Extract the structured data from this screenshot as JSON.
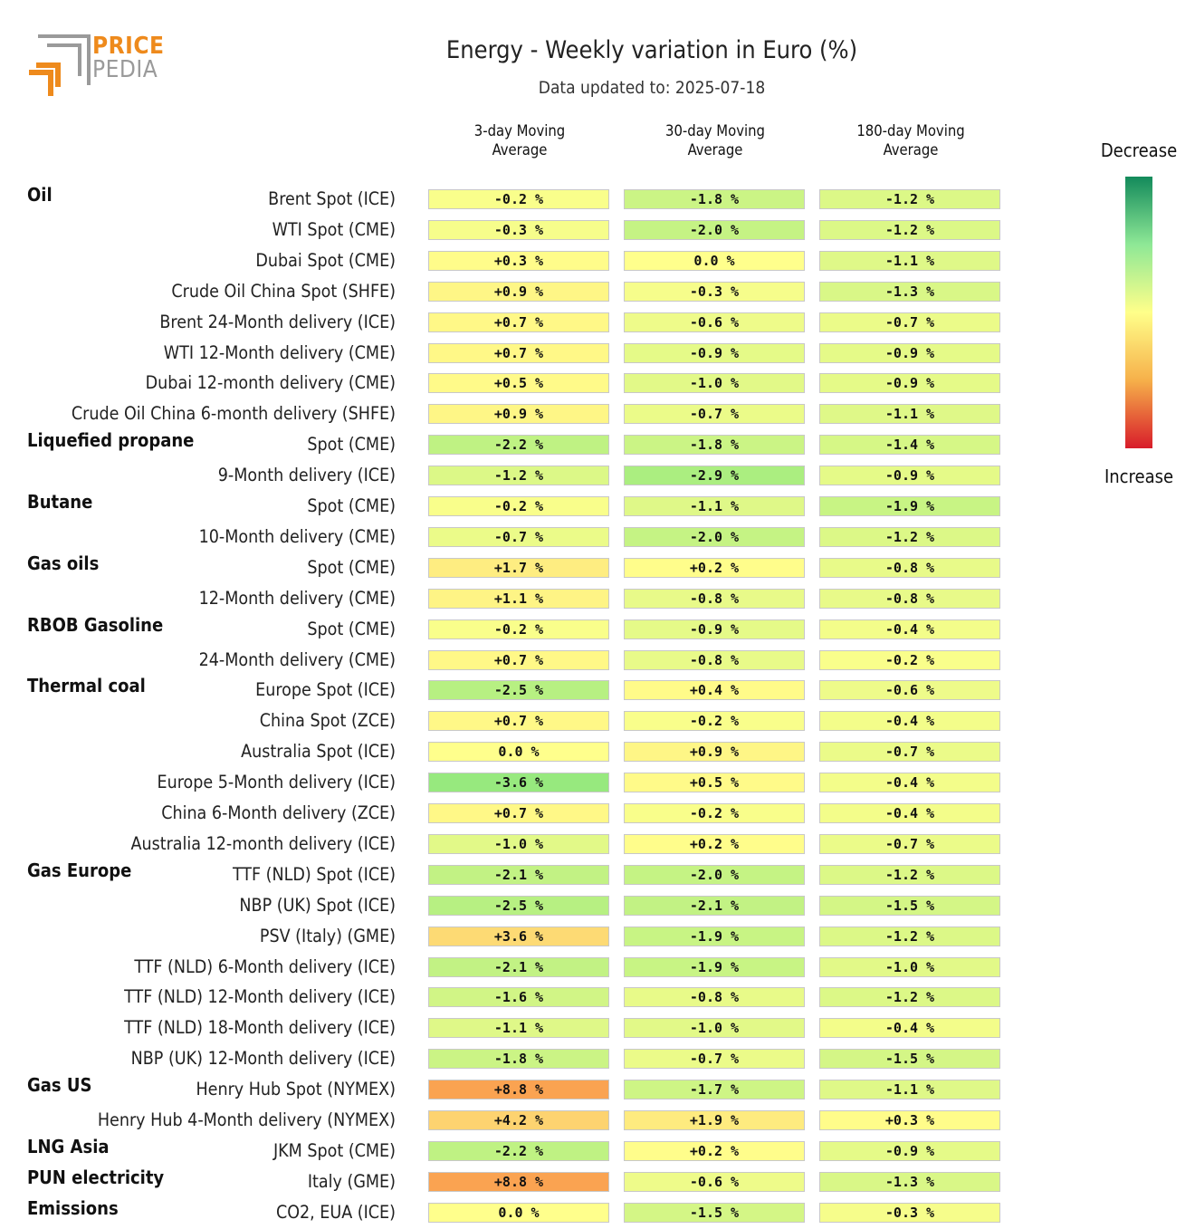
{
  "logo": {
    "line1": "PRICE",
    "line2": "PEDIA"
  },
  "chart_data": {
    "type": "table",
    "title": "Energy - Weekly variation in Euro (%)",
    "subtitle": "Data updated to: 2025-07-18",
    "columns": [
      "3-day Moving Average",
      "30-day Moving Average",
      "180-day Moving Average"
    ],
    "legend": {
      "top": "Decrease",
      "bottom": "Increase"
    },
    "colors": {
      "decrease_strong": "#138a5b",
      "neutral": "#ffff8a",
      "increase_strong": "#d81c2a"
    },
    "rows": [
      {
        "group": "Oil",
        "label": "Brent Spot (ICE)",
        "values": [
          -0.2,
          -1.8,
          -1.2
        ]
      },
      {
        "group": "",
        "label": "WTI Spot (CME)",
        "values": [
          -0.3,
          -2.0,
          -1.2
        ]
      },
      {
        "group": "",
        "label": "Dubai Spot (CME)",
        "values": [
          0.3,
          0.0,
          -1.1
        ]
      },
      {
        "group": "",
        "label": "Crude Oil China Spot (SHFE)",
        "values": [
          0.9,
          -0.3,
          -1.3
        ]
      },
      {
        "group": "",
        "label": "Brent 24-Month delivery (ICE)",
        "values": [
          0.7,
          -0.6,
          -0.7
        ]
      },
      {
        "group": "",
        "label": "WTI 12-Month delivery (CME)",
        "values": [
          0.7,
          -0.9,
          -0.9
        ]
      },
      {
        "group": "",
        "label": "Dubai 12-month delivery (CME)",
        "values": [
          0.5,
          -1.0,
          -0.9
        ]
      },
      {
        "group": "",
        "label": "Crude Oil China 6-month delivery (SHFE)",
        "values": [
          0.9,
          -0.7,
          -1.1
        ]
      },
      {
        "group": "Liquefied propane",
        "label": "Spot (CME)",
        "values": [
          -2.2,
          -1.8,
          -1.4
        ]
      },
      {
        "group": "",
        "label": "9-Month delivery (ICE)",
        "values": [
          -1.2,
          -2.9,
          -0.9
        ]
      },
      {
        "group": "Butane",
        "label": "Spot (CME)",
        "values": [
          -0.2,
          -1.1,
          -1.9
        ]
      },
      {
        "group": "",
        "label": "10-Month delivery (CME)",
        "values": [
          -0.7,
          -2.0,
          -1.2
        ]
      },
      {
        "group": "Gas oils",
        "label": "Spot (CME)",
        "values": [
          1.7,
          0.2,
          -0.8
        ]
      },
      {
        "group": "",
        "label": "12-Month delivery (CME)",
        "values": [
          1.1,
          -0.8,
          -0.8
        ]
      },
      {
        "group": "RBOB Gasoline",
        "label": "Spot (CME)",
        "values": [
          -0.2,
          -0.9,
          -0.4
        ]
      },
      {
        "group": "",
        "label": "24-Month delivery (CME)",
        "values": [
          0.7,
          -0.8,
          -0.2
        ]
      },
      {
        "group": "Thermal coal",
        "label": "Europe Spot (ICE)",
        "values": [
          -2.5,
          0.4,
          -0.6
        ]
      },
      {
        "group": "",
        "label": "China Spot (ZCE)",
        "values": [
          0.7,
          -0.2,
          -0.4
        ]
      },
      {
        "group": "",
        "label": "Australia Spot (ICE)",
        "values": [
          0.0,
          0.9,
          -0.7
        ]
      },
      {
        "group": "",
        "label": "Europe 5-Month delivery (ICE)",
        "values": [
          -3.6,
          0.5,
          -0.4
        ]
      },
      {
        "group": "",
        "label": "China 6-Month delivery (ZCE)",
        "values": [
          0.7,
          -0.2,
          -0.4
        ]
      },
      {
        "group": "",
        "label": "Australia 12-month delivery (ICE)",
        "values": [
          -1.0,
          0.2,
          -0.7
        ]
      },
      {
        "group": "Gas Europe",
        "label": "TTF (NLD) Spot (ICE)",
        "values": [
          -2.1,
          -2.0,
          -1.2
        ]
      },
      {
        "group": "",
        "label": "NBP (UK) Spot (ICE)",
        "values": [
          -2.5,
          -2.1,
          -1.5
        ]
      },
      {
        "group": "",
        "label": "PSV (Italy) (GME)",
        "values": [
          3.6,
          -1.9,
          -1.2
        ]
      },
      {
        "group": "",
        "label": "TTF (NLD) 6-Month delivery (ICE)",
        "values": [
          -2.1,
          -1.9,
          -1.0
        ]
      },
      {
        "group": "",
        "label": "TTF (NLD) 12-Month delivery (ICE)",
        "values": [
          -1.6,
          -0.8,
          -1.2
        ]
      },
      {
        "group": "",
        "label": "TTF (NLD) 18-Month delivery (ICE)",
        "values": [
          -1.1,
          -1.0,
          -0.4
        ]
      },
      {
        "group": "",
        "label": "NBP (UK) 12-Month delivery (ICE)",
        "values": [
          -1.8,
          -0.7,
          -1.5
        ]
      },
      {
        "group": "Gas US",
        "label": "Henry Hub Spot (NYMEX)",
        "values": [
          8.8,
          -1.7,
          -1.1
        ]
      },
      {
        "group": "",
        "label": "Henry Hub 4-Month delivery (NYMEX)",
        "values": [
          4.2,
          1.9,
          0.3
        ]
      },
      {
        "group": "LNG Asia",
        "label": "JKM Spot (CME)",
        "values": [
          -2.2,
          0.2,
          -0.9
        ]
      },
      {
        "group": "PUN electricity",
        "label": "Italy (GME)",
        "values": [
          8.8,
          -0.6,
          -1.3
        ]
      },
      {
        "group": "Emissions",
        "label": "CO2, EUA (ICE)",
        "values": [
          0.0,
          -1.5,
          -0.3
        ]
      }
    ]
  }
}
